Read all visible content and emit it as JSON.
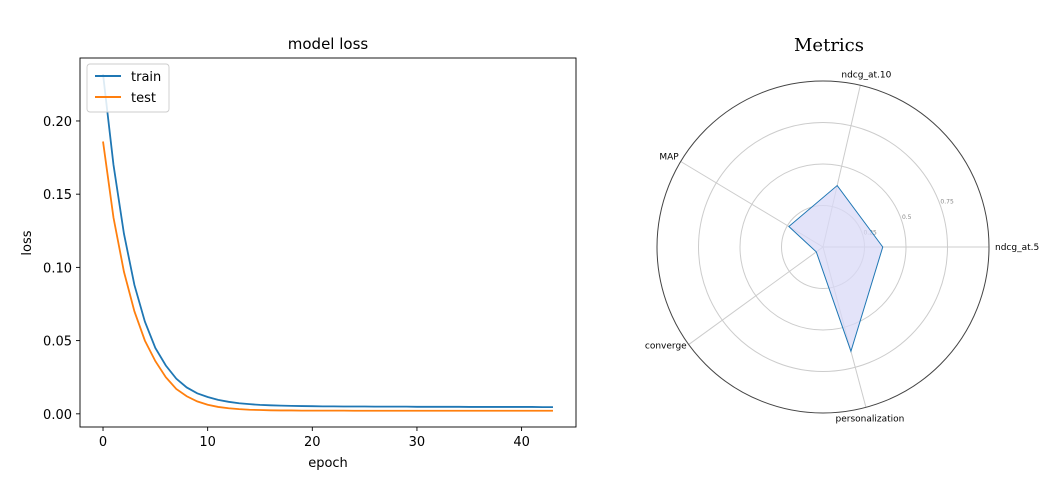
{
  "chart_data": [
    {
      "type": "line",
      "title": "model loss",
      "xlabel": "epoch",
      "ylabel": "loss",
      "xlim": [
        -2.2,
        45.2
      ],
      "ylim": [
        -0.009,
        0.243
      ],
      "xticks": [
        0,
        10,
        20,
        30,
        40
      ],
      "xtick_labels": [
        "0",
        "10",
        "20",
        "30",
        "40"
      ],
      "yticks": [
        0.0,
        0.05,
        0.1,
        0.15,
        0.2
      ],
      "ytick_labels": [
        "0.00",
        "0.05",
        "0.10",
        "0.15",
        "0.20"
      ],
      "grid": false,
      "legend": "upper-left",
      "series": [
        {
          "name": "train",
          "color": "#1f77b4",
          "x": [
            0,
            1,
            2,
            3,
            4,
            5,
            6,
            7,
            8,
            9,
            10,
            11,
            12,
            13,
            14,
            15,
            16,
            17,
            18,
            19,
            20,
            21,
            22,
            23,
            24,
            25,
            26,
            27,
            28,
            29,
            30,
            31,
            32,
            33,
            34,
            35,
            36,
            37,
            38,
            39,
            40,
            41,
            42,
            43
          ],
          "values": [
            0.232,
            0.17,
            0.123,
            0.088,
            0.063,
            0.045,
            0.033,
            0.024,
            0.018,
            0.014,
            0.0115,
            0.0095,
            0.0082,
            0.0072,
            0.0066,
            0.0061,
            0.0058,
            0.0056,
            0.0054,
            0.0053,
            0.0052,
            0.0051,
            0.0051,
            0.005,
            0.005,
            0.005,
            0.0049,
            0.0049,
            0.0049,
            0.0049,
            0.0048,
            0.0048,
            0.0048,
            0.0048,
            0.0048,
            0.0047,
            0.0047,
            0.0047,
            0.0047,
            0.0047,
            0.0047,
            0.0047,
            0.0046,
            0.0046
          ]
        },
        {
          "name": "test",
          "color": "#ff7f0e",
          "x": [
            0,
            1,
            2,
            3,
            4,
            5,
            6,
            7,
            8,
            9,
            10,
            11,
            12,
            13,
            14,
            15,
            16,
            17,
            18,
            19,
            20,
            21,
            22,
            23,
            24,
            25,
            26,
            27,
            28,
            29,
            30,
            31,
            32,
            33,
            34,
            35,
            36,
            37,
            38,
            39,
            40,
            41,
            42,
            43
          ],
          "values": [
            0.186,
            0.134,
            0.097,
            0.07,
            0.05,
            0.036,
            0.025,
            0.017,
            0.012,
            0.0085,
            0.0062,
            0.0047,
            0.0038,
            0.0032,
            0.0028,
            0.0026,
            0.0024,
            0.0023,
            0.0023,
            0.0022,
            0.0022,
            0.0022,
            0.0022,
            0.0022,
            0.0021,
            0.0021,
            0.0021,
            0.0021,
            0.0021,
            0.0021,
            0.0021,
            0.0021,
            0.0021,
            0.0021,
            0.0021,
            0.0021,
            0.0021,
            0.0021,
            0.0021,
            0.0021,
            0.0021,
            0.0021,
            0.0021,
            0.0021
          ]
        }
      ]
    },
    {
      "type": "radar",
      "title": "Metrics",
      "categories": [
        "ndcg_at.5",
        "ndcg_at.10",
        "MAP",
        "converge",
        "personalization"
      ],
      "values": [
        0.36,
        0.38,
        0.24,
        0.05,
        0.65
      ],
      "rlim": [
        0,
        1.0
      ],
      "rticks": [
        0.25,
        0.5,
        0.75
      ],
      "rtick_labels": [
        "0.25",
        "0.5",
        "0.75"
      ],
      "grid": true,
      "line_color": "#1f77b4",
      "fill_color": "#d9d9f7"
    }
  ]
}
